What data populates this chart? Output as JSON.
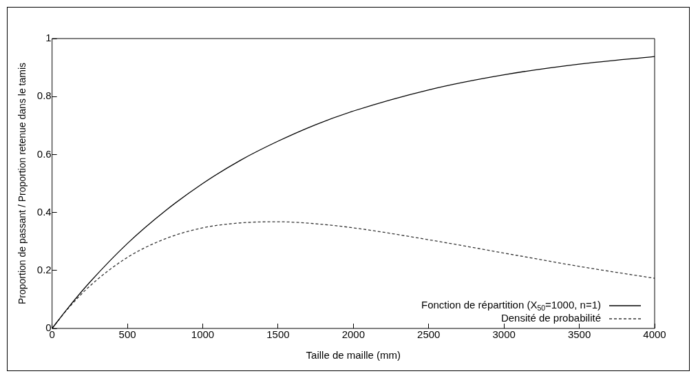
{
  "chart_data": {
    "type": "line",
    "xlabel": "Taille de maille (mm)",
    "ylabel": "Proportion de passant / Proportion retenue dans le tamis",
    "x": [
      0,
      100,
      250,
      500,
      750,
      1000,
      1250,
      1500,
      1750,
      2000,
      2500,
      3000,
      3500,
      4000
    ],
    "series": [
      {
        "name": "Fonction de répartition (X$_{50}$=1000, n=1)",
        "color": "#000000",
        "line_style": "solid",
        "values": [
          0,
          0.067,
          0.159,
          0.293,
          0.405,
          0.5,
          0.58,
          0.646,
          0.703,
          0.75,
          0.823,
          0.875,
          0.912,
          0.938
        ]
      },
      {
        "name": "Densité de probabilité",
        "color": "#333333",
        "line_style": "dashed",
        "values": [
          0,
          0.065,
          0.146,
          0.245,
          0.309,
          0.347,
          0.364,
          0.368,
          0.361,
          0.347,
          0.306,
          0.26,
          0.214,
          0.173
        ]
      }
    ],
    "xlim": [
      0,
      4000
    ],
    "xticks": [
      0,
      500,
      1000,
      1500,
      2000,
      2500,
      3000,
      3500,
      4000
    ],
    "ylim": [
      0,
      1
    ],
    "yticks": [
      0,
      0.2,
      0.4,
      0.6,
      0.8,
      1
    ],
    "grid": false,
    "legend": "bottom right",
    "marker": "none"
  }
}
